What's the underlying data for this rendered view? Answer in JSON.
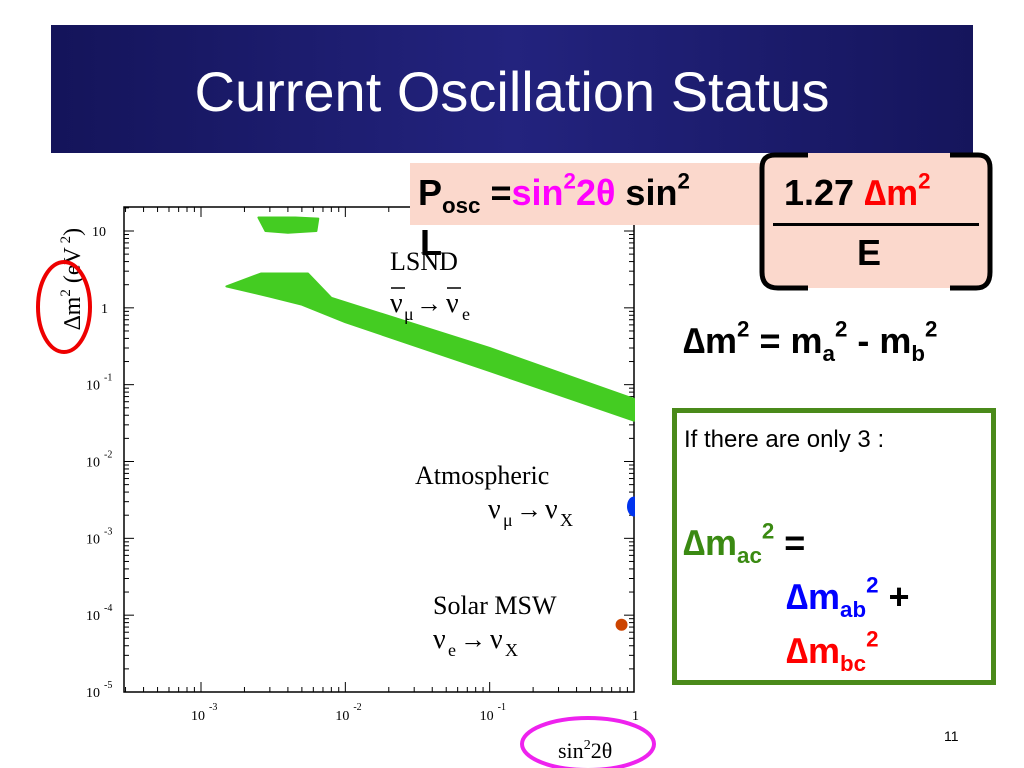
{
  "slide": {
    "title": "Current Oscillation Status",
    "page_number": "11"
  },
  "formula": {
    "p": "P",
    "p_sub": "osc",
    "equals": " =",
    "sin2": "sin",
    "sin2_sup": "2",
    "two_theta": "2θ",
    "sin_b": " sin",
    "sin_b_sup": "2",
    "numerator_const": "1.27 ",
    "numerator_dm": "∆m",
    "numerator_dm_sup": "2",
    "denominator": "E",
    "l": "L"
  },
  "mass_diff": {
    "dm": "∆m",
    "dm_sup": "2",
    "rest": " = m",
    "a_sub": "a",
    "a_sup": "2",
    "minus": " - m",
    "b_sub": "b",
    "b_sup": "2"
  },
  "three_nu": {
    "intro": "If there are only 3 :",
    "ac": "∆m",
    "ac_sub": "ac",
    "ac_sup": "2",
    "eq": " =",
    "ab": "∆m",
    "ab_sub": "ab",
    "ab_sup": "2",
    "plus": " +",
    "bc": "∆m",
    "bc_sub": "bc",
    "bc_sup": "2"
  },
  "chart_data": {
    "type": "scatter",
    "xlabel": "sin²2θ",
    "ylabel": "∆m² (eV²)",
    "xscale": "log",
    "yscale": "log",
    "xlim": [
      0.0002,
      1
    ],
    "ylim": [
      1e-05,
      20
    ],
    "x_ticks": [
      {
        "value": 0.001,
        "base": "10",
        "exp": "-3"
      },
      {
        "value": 0.01,
        "base": "10",
        "exp": "-2"
      },
      {
        "value": 0.1,
        "base": "10",
        "exp": "-1"
      },
      {
        "value": 1,
        "base": "1",
        "exp": ""
      }
    ],
    "y_ticks": [
      {
        "value": 10,
        "base": "10",
        "exp": ""
      },
      {
        "value": 1,
        "base": "1",
        "exp": ""
      },
      {
        "value": 0.1,
        "base": "10",
        "exp": "-1"
      },
      {
        "value": 0.01,
        "base": "10",
        "exp": "-2"
      },
      {
        "value": 0.001,
        "base": "10",
        "exp": "-3"
      },
      {
        "value": 0.0001,
        "base": "10",
        "exp": "-4"
      },
      {
        "value": 1e-05,
        "base": "10",
        "exp": "-5"
      }
    ],
    "regions": [
      {
        "name": "LSND-upper",
        "color": "#44cc22",
        "polygon": [
          [
            0.0025,
            15
          ],
          [
            0.0045,
            15
          ],
          [
            0.0065,
            14.5
          ],
          [
            0.0063,
            10
          ],
          [
            0.004,
            9.5
          ],
          [
            0.0028,
            10
          ]
        ]
      },
      {
        "name": "LSND-band",
        "color": "#44cc22",
        "polygon": [
          [
            0.0015,
            1.9
          ],
          [
            0.0026,
            2.8
          ],
          [
            0.0055,
            2.8
          ],
          [
            0.008,
            1.35
          ],
          [
            0.1,
            0.3
          ],
          [
            1,
            0.065
          ],
          [
            1,
            0.034
          ],
          [
            0.1,
            0.15
          ],
          [
            0.01,
            0.65
          ],
          [
            0.005,
            1.1
          ],
          [
            0.003,
            1.4
          ]
        ]
      },
      {
        "name": "Atmospheric",
        "color": "#0033ee",
        "point": [
          1,
          0.0026
        ]
      },
      {
        "name": "Solar MSW",
        "color": "#cc4400",
        "point": [
          0.82,
          7.5e-05
        ]
      }
    ],
    "annotations": [
      {
        "label": "LSND",
        "sub": "",
        "reaction": [
          "ν̄",
          "μ",
          "→",
          "ν̄",
          "e"
        ]
      },
      {
        "label": "Atmospheric",
        "reaction": [
          "ν",
          "μ",
          "→",
          "ν",
          "X"
        ]
      },
      {
        "label": "Solar MSW",
        "reaction": [
          "ν",
          "e",
          "→",
          "ν",
          "X"
        ]
      }
    ],
    "highlights": [
      {
        "target": "ylabel-dm2",
        "color": "#ee0000"
      },
      {
        "target": "xlabel",
        "color": "#ee22ee"
      }
    ]
  }
}
